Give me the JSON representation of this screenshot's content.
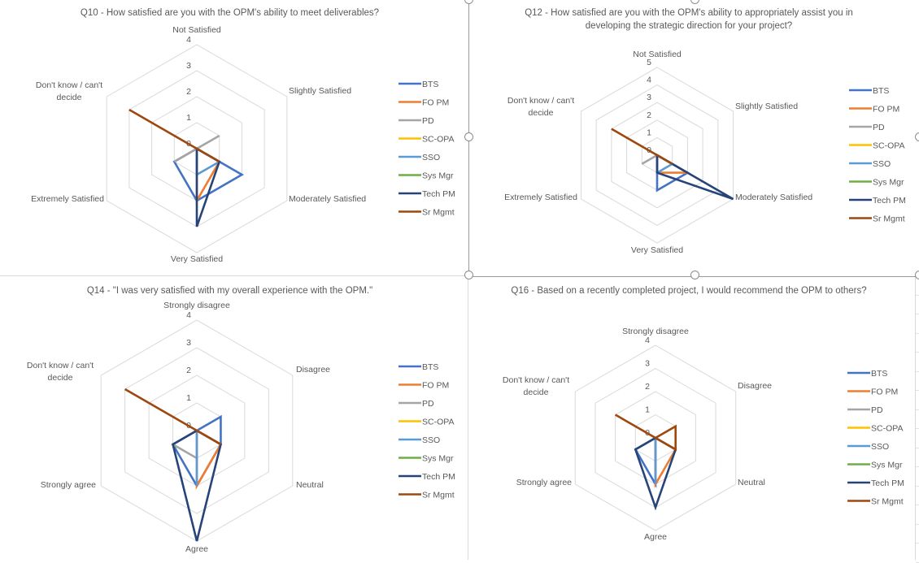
{
  "series_names": [
    "BTS",
    "FO PM",
    "PD",
    "SC-OPA",
    "SSO",
    "Sys Mgr",
    "Tech PM",
    "Sr Mgmt"
  ],
  "series_colors": [
    "#4472c4",
    "#ed7d31",
    "#a5a5a5",
    "#ffc000",
    "#5b9bd5",
    "#70ad47",
    "#264478",
    "#9e480e"
  ],
  "chart_data": [
    {
      "type": "radar",
      "title": "Q10 - How satisfied are you with the OPM's ability to meet deliverables?",
      "categories": [
        "Not Satisfied",
        "Slightly Satisfied",
        "Moderately Satisfied",
        "Very Satisfied",
        "Extremely Satisfied",
        "Don't know / can't decide"
      ],
      "rmax": 4,
      "ticks": [
        "0",
        "1",
        "2",
        "3",
        "4"
      ],
      "legend": "right",
      "series": [
        {
          "name": "BTS",
          "values": [
            0,
            0,
            2,
            2,
            1,
            0
          ]
        },
        {
          "name": "FO PM",
          "values": [
            0,
            0,
            1,
            2,
            0,
            0
          ]
        },
        {
          "name": "PD",
          "values": [
            0,
            1,
            0,
            0,
            1,
            0
          ]
        },
        {
          "name": "SC-OPA",
          "values": [
            0,
            0,
            0,
            0,
            0,
            0
          ]
        },
        {
          "name": "SSO",
          "values": [
            0,
            0,
            1,
            1,
            0,
            0
          ]
        },
        {
          "name": "Sys Mgr",
          "values": [
            0,
            0,
            0,
            0,
            0,
            0
          ]
        },
        {
          "name": "Tech PM",
          "values": [
            0,
            0,
            1,
            3,
            0,
            0
          ]
        },
        {
          "name": "Sr Mgmt",
          "values": [
            0,
            0,
            1,
            0,
            0,
            3
          ]
        }
      ]
    },
    {
      "type": "radar",
      "title": "Q12 - How satisfied are you with the OPM's ability to appropriately assist you in developing the strategic direction for your project?",
      "categories": [
        "Not Satisfied",
        "Slightly Satisfied",
        "Moderately Satisfied",
        "Very Satisfied",
        "Extremely Satisfied",
        "Don't know / can't decide"
      ],
      "rmax": 5,
      "ticks": [
        "0",
        "1",
        "2",
        "3",
        "4",
        "5"
      ],
      "legend": "right",
      "series": [
        {
          "name": "BTS",
          "values": [
            0,
            0,
            2,
            2,
            0,
            0
          ]
        },
        {
          "name": "FO PM",
          "values": [
            0,
            0,
            2,
            1,
            0,
            0
          ]
        },
        {
          "name": "PD",
          "values": [
            0,
            0,
            0,
            0,
            1,
            0
          ]
        },
        {
          "name": "SC-OPA",
          "values": [
            0,
            0,
            0,
            0,
            0,
            0
          ]
        },
        {
          "name": "SSO",
          "values": [
            0,
            0,
            1,
            1,
            0,
            0
          ]
        },
        {
          "name": "Sys Mgr",
          "values": [
            0,
            0,
            0,
            0,
            0,
            0
          ]
        },
        {
          "name": "Tech PM",
          "values": [
            0,
            0,
            5,
            1,
            0,
            0
          ]
        },
        {
          "name": "Sr Mgmt",
          "values": [
            0,
            0,
            1,
            0,
            0,
            3
          ]
        }
      ]
    },
    {
      "type": "radar",
      "title": "Q14 - \"I was very satisfied with my overall experience with the OPM.\"",
      "categories": [
        "Strongly disagree",
        "Disagree",
        "Neutral",
        "Agree",
        "Strongly agree",
        "Don't know / can't decide"
      ],
      "rmax": 4,
      "ticks": [
        "0",
        "1",
        "2",
        "3",
        "4"
      ],
      "legend": "right",
      "series": [
        {
          "name": "BTS",
          "values": [
            0,
            1,
            1,
            2,
            1,
            0
          ]
        },
        {
          "name": "FO PM",
          "values": [
            0,
            0,
            1,
            2,
            0,
            0
          ]
        },
        {
          "name": "PD",
          "values": [
            0,
            0,
            0,
            1,
            1,
            0
          ]
        },
        {
          "name": "SC-OPA",
          "values": [
            0,
            0,
            0,
            0,
            0,
            0
          ]
        },
        {
          "name": "SSO",
          "values": [
            0,
            0,
            0,
            2,
            0,
            0
          ]
        },
        {
          "name": "Sys Mgr",
          "values": [
            0,
            0,
            0,
            0,
            0,
            0
          ]
        },
        {
          "name": "Tech PM",
          "values": [
            0,
            0,
            1,
            4,
            1,
            0
          ]
        },
        {
          "name": "Sr Mgmt",
          "values": [
            0,
            0,
            1,
            0,
            0,
            3
          ]
        }
      ]
    },
    {
      "type": "radar",
      "title": "Q16 - Based on a recently completed project, I would recommend the OPM to others?",
      "categories": [
        "Strongly disagree",
        "Disagree",
        "Neutral",
        "Agree",
        "Strongly agree",
        "Don't know / can't decide"
      ],
      "rmax": 4,
      "ticks": [
        "0",
        "1",
        "2",
        "3",
        "4"
      ],
      "legend": "right",
      "series": [
        {
          "name": "BTS",
          "values": [
            0,
            0,
            0,
            2,
            1,
            0
          ]
        },
        {
          "name": "FO PM",
          "values": [
            0,
            0,
            1,
            2,
            0,
            0
          ]
        },
        {
          "name": "PD",
          "values": [
            0,
            0,
            0,
            0,
            0,
            0
          ]
        },
        {
          "name": "SC-OPA",
          "values": [
            0,
            0,
            0,
            0,
            0,
            0
          ]
        },
        {
          "name": "SSO",
          "values": [
            0,
            0,
            0,
            2,
            0,
            0
          ]
        },
        {
          "name": "Sys Mgr",
          "values": [
            0,
            0,
            0,
            0,
            0,
            0
          ]
        },
        {
          "name": "Tech PM",
          "values": [
            0,
            0,
            1,
            3,
            1,
            0
          ]
        },
        {
          "name": "Sr Mgmt",
          "values": [
            0,
            1,
            1,
            0,
            0,
            2
          ]
        }
      ]
    }
  ]
}
